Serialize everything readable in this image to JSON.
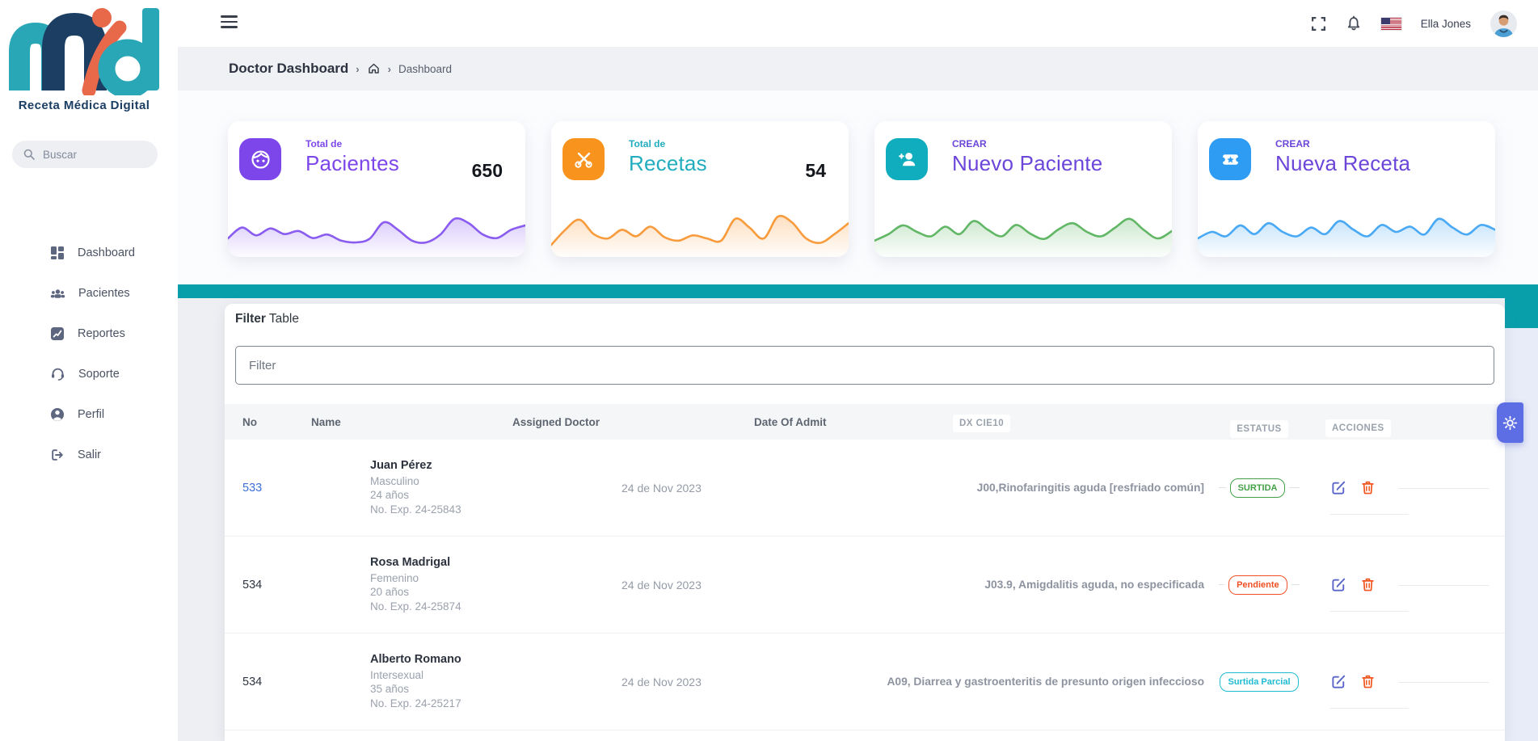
{
  "theme": {
    "teal_bar": "#089fab",
    "fab": "#5d6de4",
    "logo_teal": "#2aa7b7",
    "logo_navy": "#1c3e63",
    "logo_orange": "#e8684a"
  },
  "brand": {
    "tagline": "Receta Médica Digital"
  },
  "topbar": {
    "user_name": "Ella Jones"
  },
  "sidebar": {
    "search_placeholder": "Buscar",
    "items": [
      {
        "label": "Dashboard"
      },
      {
        "label": "Pacientes"
      },
      {
        "label": "Reportes"
      },
      {
        "label": "Soporte"
      },
      {
        "label": "Perfil"
      },
      {
        "label": "Salir"
      }
    ]
  },
  "breadcrumb": {
    "title": "Doctor Dashboard",
    "current": "Dashboard"
  },
  "cards": [
    {
      "kicker": "Total de",
      "label": "Pacientes",
      "value": "650",
      "tile_color": "#7d46ea",
      "kicker_color": "#7d46ea",
      "label_color": "#7d46ea",
      "spark_color": "#8a5cf0",
      "sparkline": [
        35,
        60,
        42,
        58,
        45,
        52,
        36,
        44,
        30,
        26,
        34,
        72,
        55,
        30,
        26,
        44,
        80,
        70,
        44,
        36,
        55,
        65
      ]
    },
    {
      "kicker": "Total de",
      "label": "Recetas",
      "value": "54",
      "tile_color": "#f8941e",
      "kicker_color": "#21adbe",
      "label_color": "#21adbe",
      "spark_color": "#f89b3c",
      "sparkline": [
        20,
        55,
        78,
        45,
        35,
        55,
        40,
        62,
        38,
        30,
        42,
        35,
        30,
        80,
        60,
        35,
        85,
        72,
        35,
        25,
        45,
        70
      ]
    },
    {
      "kicker": "CREAR",
      "label": "Nuevo Paciente",
      "value": "",
      "tile_color": "#0fadbd",
      "kicker_color": "#6b46d9",
      "label_color": "#6b46d9",
      "spark_color": "#62b766",
      "sparkline": [
        30,
        45,
        65,
        50,
        40,
        62,
        45,
        75,
        55,
        40,
        66,
        46,
        34,
        56,
        70,
        50,
        40,
        60,
        80,
        55,
        35,
        52
      ]
    },
    {
      "kicker": "CREAR",
      "label": "Nueva Receta",
      "value": "",
      "tile_color": "#2f9cf4",
      "kicker_color": "#6b46d9",
      "label_color": "#6b46d9",
      "spark_color": "#49a9f4",
      "sparkline": [
        35,
        50,
        40,
        65,
        45,
        70,
        50,
        40,
        60,
        45,
        75,
        55,
        40,
        66,
        50,
        62,
        44,
        80,
        60,
        44,
        66,
        55
      ]
    }
  ],
  "filter_section": {
    "title_strong": "Filter",
    "title_rest": " Table",
    "input_placeholder": "Filter"
  },
  "table": {
    "headers": {
      "no": "No",
      "name": "Name",
      "doctor": "Assigned Doctor",
      "date": "Date Of Admit",
      "dx": "DX CIE10",
      "status": "ESTATUS",
      "actions": "ACCIONES"
    },
    "rows": [
      {
        "no": "533",
        "name": "Juan Pérez",
        "gender": "Masculino",
        "age": "24 años",
        "exp": "No. Exp. 24-25843",
        "date": "24 de Nov 2023",
        "dx": "J00,Rinofaringitis aguda [resfriado común]",
        "status": "SURTIDA",
        "status_color": "#43a047"
      },
      {
        "no": "534",
        "name": "Rosa Madrigal",
        "gender": "Femenino",
        "age": "20 años",
        "exp": "No. Exp. 24-25874",
        "date": "24 de Nov 2023",
        "dx": "J03.9, Amigdalitis aguda, no especificada",
        "status": "Pendiente",
        "status_color": "#f04e23"
      },
      {
        "no": "534",
        "name": "Alberto Romano",
        "gender": "Intersexual",
        "age": "35 años",
        "exp": "No. Exp. 24-25217",
        "date": "24 de Nov 2023",
        "dx": "A09, Diarrea y gastroenteritis de presunto origen infeccioso",
        "status": "Surtida Parcial",
        "status_color": "#1fbcd2"
      }
    ]
  }
}
